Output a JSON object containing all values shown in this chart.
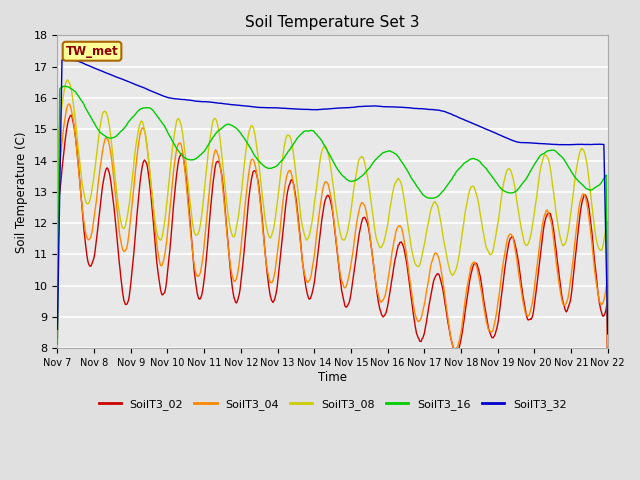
{
  "title": "Soil Temperature Set 3",
  "xlabel": "Time",
  "ylabel": "Soil Temperature (C)",
  "ylim": [
    8.0,
    18.0
  ],
  "yticks": [
    8.0,
    9.0,
    10.0,
    11.0,
    12.0,
    13.0,
    14.0,
    15.0,
    16.0,
    17.0,
    18.0
  ],
  "bg_color": "#e0e0e0",
  "plot_bg_color": "#e8e8e8",
  "grid_color": "#ffffff",
  "legend_label": "TW_met",
  "series": {
    "SoilT3_02": {
      "color": "#cc0000",
      "lw": 1.0
    },
    "SoilT3_04": {
      "color": "#ff8800",
      "lw": 1.0
    },
    "SoilT3_08": {
      "color": "#cccc00",
      "lw": 1.0
    },
    "SoilT3_16": {
      "color": "#00cc00",
      "lw": 1.0
    },
    "SoilT3_32": {
      "color": "#0000cc",
      "lw": 1.0
    }
  },
  "x_tick_labels": [
    "Nov 7",
    "Nov 8",
    "Nov 9",
    "Nov 10",
    "Nov 11",
    "Nov 12",
    "Nov 13",
    "Nov 14",
    "Nov 15",
    "Nov 16",
    "Nov 17",
    "Nov 18",
    "Nov 19",
    "Nov 20",
    "Nov 21",
    "Nov 22"
  ],
  "figsize": [
    6.4,
    4.8
  ],
  "dpi": 100
}
